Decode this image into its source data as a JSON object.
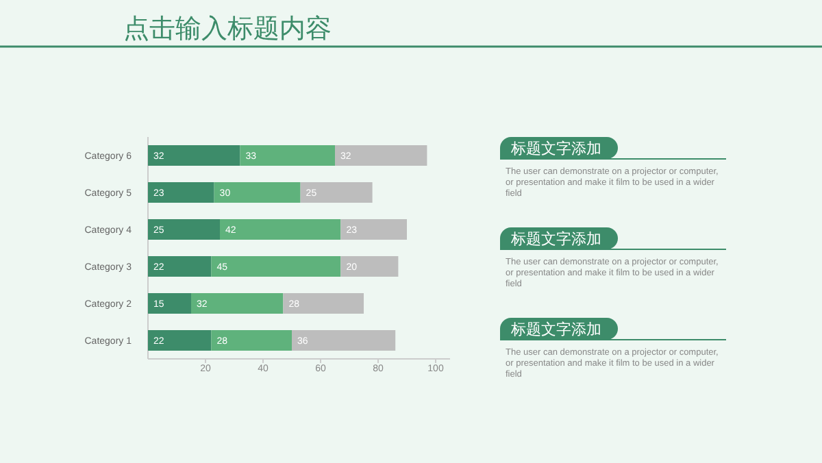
{
  "chart_data": {
    "type": "bar",
    "orientation": "horizontal",
    "stacked": true,
    "title": "点击输入标题内容",
    "categories": [
      "Category 6",
      "Category 5",
      "Category 4",
      "Category 3",
      "Category 2",
      "Category 1"
    ],
    "series": [
      {
        "color": "#3d8c6a",
        "values": [
          32,
          23,
          25,
          22,
          15,
          22
        ]
      },
      {
        "color": "#5fb27c",
        "values": [
          33,
          30,
          42,
          45,
          32,
          28
        ]
      },
      {
        "color": "#bdbdbd",
        "values": [
          32,
          25,
          23,
          20,
          28,
          36
        ]
      }
    ],
    "xlim": [
      0,
      105
    ],
    "xticks": [
      20,
      40,
      60,
      80,
      100
    ],
    "data_labels": true,
    "grid": false,
    "annotations": [
      "标题文字添加",
      "The user can demonstrate on a projector or computer, or presentation and make it film to be used in a wider field",
      "标题文字添加",
      "The user can demonstrate on a projector or computer, or presentation and make it film to be used in a wider field",
      "标题文字添加",
      "The user can demonstrate on a projector or computer, or presentation and make it film to be used in a wider field"
    ]
  }
}
